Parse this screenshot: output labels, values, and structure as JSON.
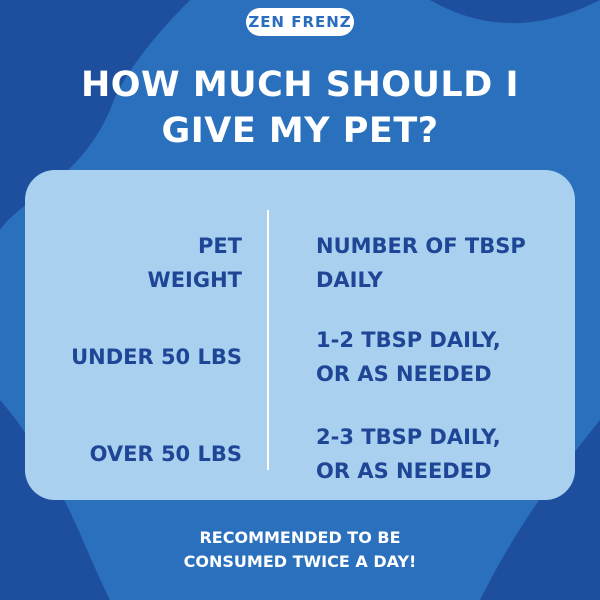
{
  "logo": "ZEN FRENZ",
  "title": [
    "HOW MUCH SHOULD I",
    "GIVE MY PET?"
  ],
  "table": {
    "header": [
      [
        "PET",
        "WEIGHT"
      ],
      [
        "NUMBER OF TBSP",
        "DAILY"
      ]
    ],
    "rows": [
      [
        [
          "UNDER 50 LBS"
        ],
        [
          "1-2 TBSP DAILY,",
          "OR AS NEEDED"
        ]
      ],
      [
        [
          "OVER 50 LBS"
        ],
        [
          "2-3 TBSP DAILY,",
          "OR AS NEEDED"
        ]
      ]
    ]
  },
  "footer": [
    "RECOMMENDED TO BE",
    "CONSUMED TWICE A DAY!"
  ]
}
